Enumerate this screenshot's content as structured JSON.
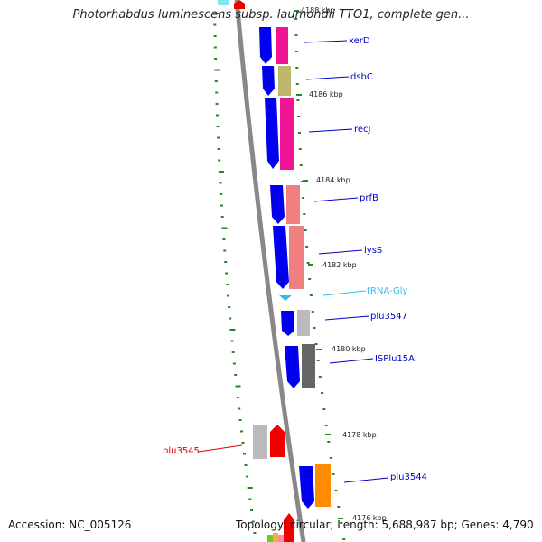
{
  "title": "Photorhabdus luminescens subsp. laumondii TTO1, complete gen...",
  "footer": {
    "accession": "Accession: NC_005126",
    "summary": "Topology: circular; Length: 5,688,987 bp; Genes: 4,790"
  },
  "ticks": [
    "4188 kbp",
    "4186 kbp",
    "4184 kbp",
    "4182 kbp",
    "4180 kbp",
    "4178 kbp",
    "4176 kbp"
  ],
  "genes": [
    {
      "name": "xerD",
      "color": "#0000cc"
    },
    {
      "name": "dsbC",
      "color": "#0000cc"
    },
    {
      "name": "recJ",
      "color": "#0000cc"
    },
    {
      "name": "prfB",
      "color": "#0000cc"
    },
    {
      "name": "lysS",
      "color": "#0000cc"
    },
    {
      "name": "tRNA-Gly",
      "color": "#33bbee"
    },
    {
      "name": "plu3547",
      "color": "#0000cc"
    },
    {
      "name": "ISPlu15A",
      "color": "#0000cc"
    },
    {
      "name": "plu3545",
      "color": "#dd0000"
    },
    {
      "name": "plu3544",
      "color": "#0000cc"
    }
  ],
  "colors": {
    "backbone": "#888888",
    "forward_cds": "#0000ee",
    "reverse_cds": "#ee0000",
    "gc_skew": "#228822",
    "cog_pink": "#ee1493",
    "cog_olive": "#bdb76b",
    "cog_salmon": "#f08080",
    "cog_gray": "#bbbbbb",
    "cog_dark": "#666666",
    "cog_orange": "#ff8c00",
    "trna": "#33bbee"
  }
}
